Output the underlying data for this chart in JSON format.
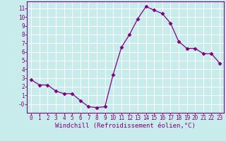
{
  "x": [
    0,
    1,
    2,
    3,
    4,
    5,
    6,
    7,
    8,
    9,
    10,
    11,
    12,
    13,
    14,
    15,
    16,
    17,
    18,
    19,
    20,
    21,
    22,
    23
  ],
  "y": [
    2.8,
    2.2,
    2.2,
    1.5,
    1.2,
    1.2,
    0.4,
    -0.3,
    -0.4,
    -0.3,
    3.4,
    6.5,
    8.0,
    9.8,
    11.2,
    10.8,
    10.4,
    9.3,
    7.2,
    6.4,
    6.4,
    5.8,
    5.8,
    4.7
  ],
  "line_color": "#800080",
  "marker": "D",
  "marker_size": 2.5,
  "bg_color": "#c8ecec",
  "grid_color": "#ffffff",
  "xlabel": "Windchill (Refroidissement éolien,°C)",
  "xlim": [
    -0.5,
    23.5
  ],
  "ylim": [
    -1.0,
    11.8
  ],
  "yticks": [
    0,
    1,
    2,
    3,
    4,
    5,
    6,
    7,
    8,
    9,
    10,
    11
  ],
  "xticks": [
    0,
    1,
    2,
    3,
    4,
    5,
    6,
    7,
    8,
    9,
    10,
    11,
    12,
    13,
    14,
    15,
    16,
    17,
    18,
    19,
    20,
    21,
    22,
    23
  ],
  "tick_color": "#800080",
  "label_color": "#800080",
  "tick_fontsize": 5.5,
  "xlabel_fontsize": 6.5,
  "spine_color": "#800080"
}
